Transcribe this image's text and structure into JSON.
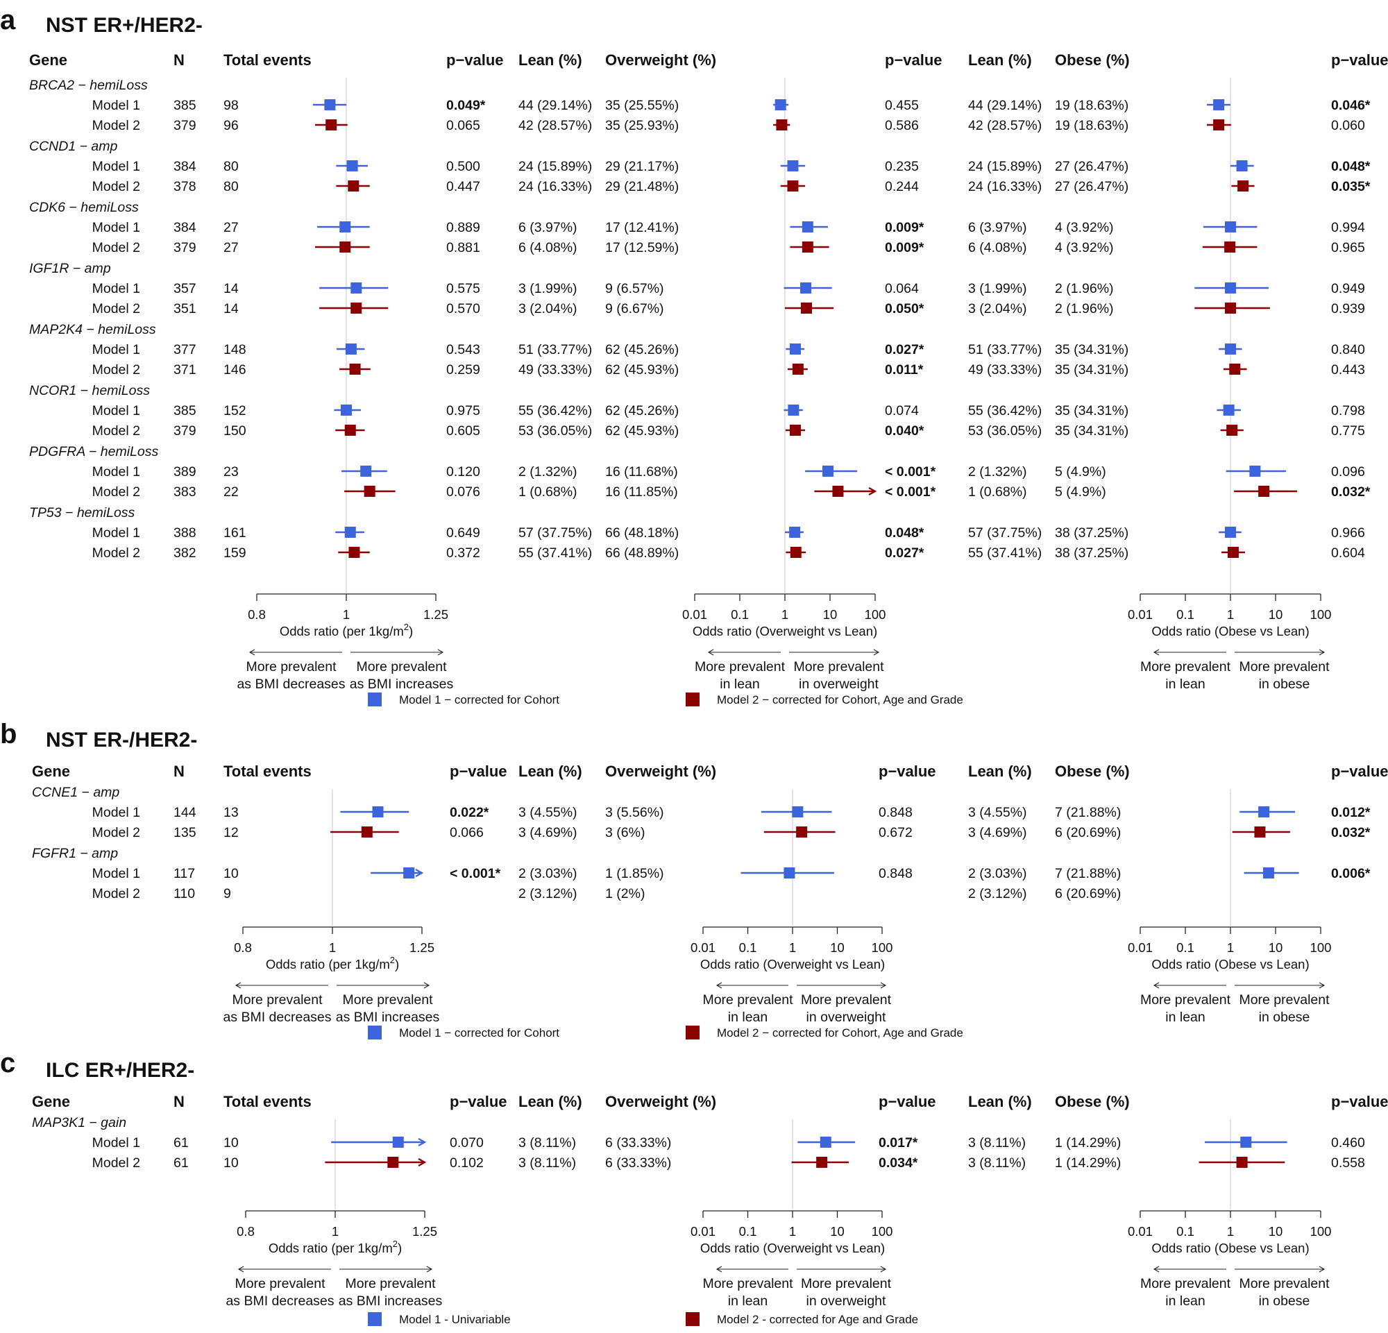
{
  "colors": {
    "model1": "#3c64dc",
    "model2": "#8b0000",
    "ref": "#d0d0d0",
    "axis": "#222222"
  },
  "columns": [
    "Gene",
    "N",
    "Total events",
    "p−value",
    "Lean (%)",
    "Overweight (%)",
    "p−value",
    "Lean (%)",
    "Obese (%)",
    "p−value"
  ],
  "axes": {
    "bmi_ticks": [
      "0.8",
      "1",
      "1.25"
    ],
    "bmi_label": "Odds ratio (per 1kg/m",
    "bmi_label_sup": "2",
    "bmi_label_end": ")",
    "ow_ticks": [
      "0.01",
      "0.1",
      "1",
      "10",
      "100"
    ],
    "ow_label": "Odds ratio (Overweight vs Lean)",
    "ob_ticks": [
      "0.01",
      "0.1",
      "1",
      "10",
      "100"
    ],
    "ob_label": "Odds ratio (Obese vs Lean)",
    "dir_bmi_left": [
      "More prevalent",
      "as BMI decreases"
    ],
    "dir_bmi_right": [
      "More prevalent",
      "as BMI increases"
    ],
    "dir_ow_left": [
      "More prevalent",
      "in lean"
    ],
    "dir_ow_right": [
      "More prevalent",
      "in overweight"
    ],
    "dir_ob_left": [
      "More prevalent",
      "in lean"
    ],
    "dir_ob_right": [
      "More prevalent",
      "in obese"
    ]
  },
  "chart_data": [
    {
      "type": "forest",
      "label": "a",
      "title": "NST ER+/HER2-",
      "legend": [
        "Model 1 − corrected for Cohort",
        "Model 2 − corrected for Cohort, Age and Grade"
      ],
      "groups": [
        {
          "gene": "BRCA2 − hemiLoss",
          "rows": [
            {
              "model": "Model 1",
              "n": "385",
              "events": "98",
              "p1": "0.049*",
              "lean1": "44 (29.14%)",
              "ow": "35 (25.55%)",
              "p2": "0.455",
              "lean2": "44 (29.14%)",
              "ob": "19 (18.63%)",
              "p3": "0.046*",
              "f1": [
                0.96,
                0.92,
                1.0
              ],
              "f2": [
                0.8,
                0.55,
                1.2
              ],
              "f3": [
                0.55,
                0.3,
                1.0
              ]
            },
            {
              "model": "Model 2",
              "n": "379",
              "events": "96",
              "p1": "0.065",
              "lean1": "42 (28.57%)",
              "ow": "35 (25.93%)",
              "p2": "0.586",
              "lean2": "42 (28.57%)",
              "ob": "19 (18.63%)",
              "p3": "0.060",
              "f1": [
                0.963,
                0.925,
                1.003
              ],
              "f2": [
                0.85,
                0.55,
                1.3
              ],
              "f3": [
                0.55,
                0.3,
                1.03
              ]
            }
          ]
        },
        {
          "gene": "CCND1 − amp",
          "rows": [
            {
              "model": "Model 1",
              "n": "384",
              "events": "80",
              "p1": "0.500",
              "lean1": "24 (15.89%)",
              "ow": "29 (21.17%)",
              "p2": "0.235",
              "lean2": "24 (15.89%)",
              "ob": "27 (26.47%)",
              "p3": "0.048*",
              "f1": [
                1.015,
                0.975,
                1.055
              ],
              "f2": [
                1.5,
                0.8,
                2.8
              ],
              "f3": [
                1.8,
                1.0,
                3.3
              ]
            },
            {
              "model": "Model 2",
              "n": "378",
              "events": "80",
              "p1": "0.447",
              "lean1": "24 (16.33%)",
              "ow": "29 (21.48%)",
              "p2": "0.244",
              "lean2": "24 (16.33%)",
              "ob": "27 (26.47%)",
              "p3": "0.035*",
              "f1": [
                1.018,
                0.975,
                1.06
              ],
              "f2": [
                1.5,
                0.8,
                2.8
              ],
              "f3": [
                1.9,
                1.05,
                3.4
              ]
            }
          ]
        },
        {
          "gene": "CDK6 − hemiLoss",
          "rows": [
            {
              "model": "Model 1",
              "n": "384",
              "events": "27",
              "p1": "0.889",
              "lean1": "6 (3.97%)",
              "ow": "17 (12.41%)",
              "p2": "0.009*",
              "lean2": "6 (3.97%)",
              "ob": "4 (3.92%)",
              "p3": "0.994",
              "f1": [
                0.997,
                0.93,
                1.06
              ],
              "f2": [
                3.2,
                1.3,
                9.0
              ],
              "f3": [
                1.0,
                0.25,
                3.9
              ]
            },
            {
              "model": "Model 2",
              "n": "379",
              "events": "27",
              "p1": "0.881",
              "lean1": "6 (4.08%)",
              "ow": "17 (12.59%)",
              "p2": "0.009*",
              "lean2": "6 (4.08%)",
              "ob": "4 (3.92%)",
              "p3": "0.965",
              "f1": [
                0.997,
                0.925,
                1.06
              ],
              "f2": [
                3.2,
                1.3,
                9.5
              ],
              "f3": [
                0.97,
                0.24,
                3.9
              ]
            }
          ]
        },
        {
          "gene": "IGF1R − amp",
          "rows": [
            {
              "model": "Model 1",
              "n": "357",
              "events": "14",
              "p1": "0.575",
              "lean1": "3 (1.99%)",
              "ow": "9 (6.57%)",
              "p2": "0.064",
              "lean2": "3 (1.99%)",
              "ob": "2 (1.96%)",
              "p3": "0.949",
              "f1": [
                1.025,
                0.935,
                1.11
              ],
              "f2": [
                2.9,
                0.95,
                11.0
              ],
              "f3": [
                1.0,
                0.16,
                7.0
              ]
            },
            {
              "model": "Model 2",
              "n": "351",
              "events": "14",
              "p1": "0.570",
              "lean1": "3 (2.04%)",
              "ow": "9 (6.67%)",
              "p2": "0.050*",
              "lean2": "3 (2.04%)",
              "ob": "2 (1.96%)",
              "p3": "0.939",
              "f1": [
                1.025,
                0.935,
                1.11
              ],
              "f2": [
                3.0,
                1.0,
                12.0
              ],
              "f3": [
                1.0,
                0.16,
                7.5
              ]
            }
          ]
        },
        {
          "gene": "MAP2K4 − hemiLoss",
          "rows": [
            {
              "model": "Model 1",
              "n": "377",
              "events": "148",
              "p1": "0.543",
              "lean1": "51 (33.77%)",
              "ow": "62 (45.26%)",
              "p2": "0.027*",
              "lean2": "51 (33.77%)",
              "ob": "35 (34.31%)",
              "p3": "0.840",
              "f1": [
                1.012,
                0.976,
                1.047
              ],
              "f2": [
                1.7,
                1.05,
                2.7
              ],
              "f3": [
                1.0,
                0.55,
                1.8
              ]
            },
            {
              "model": "Model 2",
              "n": "371",
              "events": "146",
              "p1": "0.259",
              "lean1": "49 (33.33%)",
              "ow": "62 (45.93%)",
              "p2": "0.011*",
              "lean2": "49 (33.33%)",
              "ob": "35 (34.31%)",
              "p3": "0.443",
              "f1": [
                1.022,
                0.983,
                1.062
              ],
              "f2": [
                1.95,
                1.15,
                3.2
              ],
              "f3": [
                1.25,
                0.7,
                2.3
              ]
            }
          ]
        },
        {
          "gene": "NCOR1 − hemiLoss",
          "rows": [
            {
              "model": "Model 1",
              "n": "385",
              "events": "152",
              "p1": "0.975",
              "lean1": "55 (36.42%)",
              "ow": "62 (45.26%)",
              "p2": "0.074",
              "lean2": "55 (36.42%)",
              "ob": "35 (34.31%)",
              "p3": "0.798",
              "f1": [
                1.0,
                0.97,
                1.037
              ],
              "f2": [
                1.55,
                0.95,
                2.5
              ],
              "f3": [
                0.92,
                0.5,
                1.7
              ]
            },
            {
              "model": "Model 2",
              "n": "379",
              "events": "150",
              "p1": "0.605",
              "lean1": "53 (36.05%)",
              "ow": "62 (45.93%)",
              "p2": "0.040*",
              "lean2": "53 (36.05%)",
              "ob": "35 (34.31%)",
              "p3": "0.775",
              "f1": [
                1.01,
                0.973,
                1.047
              ],
              "f2": [
                1.7,
                1.03,
                2.8
              ],
              "f3": [
                1.08,
                0.6,
                1.95
              ]
            }
          ]
        },
        {
          "gene": "PDGFRA − hemiLoss",
          "rows": [
            {
              "model": "Model 1",
              "n": "389",
              "events": "23",
              "p1": "0.120",
              "lean1": "2 (1.32%)",
              "ow": "16 (11.68%)",
              "p2": "< 0.001*",
              "lean2": "2 (1.32%)",
              "ob": "5 (4.9%)",
              "p3": "0.096",
              "f1": [
                1.05,
                0.988,
                1.107
              ],
              "f2": [
                9.0,
                2.8,
                40.0
              ],
              "f3": [
                3.5,
                0.8,
                17.0
              ]
            },
            {
              "model": "Model 2",
              "n": "383",
              "events": "22",
              "p1": "0.076",
              "lean1": "1 (0.68%)",
              "ow": "16 (11.85%)",
              "p2": "< 0.001*",
              "lean2": "1 (0.68%)",
              "ob": "5 (4.9%)",
              "p3": "0.032*",
              "f1": [
                1.06,
                0.995,
                1.13
              ],
              "f2": [
                15.0,
                4.5,
                100.0
              ],
              "f3": [
                5.5,
                1.2,
                30.0
              ],
              "arrow2": true
            }
          ]
        },
        {
          "gene": "TP53 − hemiLoss",
          "rows": [
            {
              "model": "Model 1",
              "n": "388",
              "events": "161",
              "p1": "0.649",
              "lean1": "57 (37.75%)",
              "ow": "66 (48.18%)",
              "p2": "0.048*",
              "lean2": "57 (37.75%)",
              "ob": "38 (37.25%)",
              "p3": "0.966",
              "f1": [
                1.01,
                0.973,
                1.046
              ],
              "f2": [
                1.65,
                1.0,
                2.6
              ],
              "f3": [
                1.0,
                0.55,
                1.75
              ]
            },
            {
              "model": "Model 2",
              "n": "382",
              "events": "159",
              "p1": "0.372",
              "lean1": "55 (37.41%)",
              "ow": "66 (48.89%)",
              "p2": "0.027*",
              "lean2": "55 (37.41%)",
              "ob": "38 (37.25%)",
              "p3": "0.604",
              "f1": [
                1.02,
                0.98,
                1.06
              ],
              "f2": [
                1.75,
                1.05,
                2.9
              ],
              "f3": [
                1.15,
                0.63,
                2.1
              ]
            }
          ]
        }
      ]
    },
    {
      "type": "forest",
      "label": "b",
      "title": "NST ER-/HER2-",
      "legend": [
        "Model 1 − corrected for Cohort",
        "Model 2 − corrected for Cohort, Age and Grade"
      ],
      "groups": [
        {
          "gene": "CCNE1 − amp",
          "rows": [
            {
              "model": "Model 1",
              "n": "144",
              "events": "13",
              "p1": "0.022*",
              "lean1": "3 (4.55%)",
              "ow": "3 (5.56%)",
              "p2": "0.848",
              "lean2": "3 (4.55%)",
              "ob": "7 (21.88%)",
              "p3": "0.012*",
              "f1": [
                1.12,
                1.02,
                1.21
              ],
              "f2": [
                1.3,
                0.2,
                7.5
              ],
              "f3": [
                5.5,
                1.6,
                27.0
              ]
            },
            {
              "model": "Model 2",
              "n": "135",
              "events": "12",
              "p1": "0.066",
              "lean1": "3 (4.69%)",
              "ow": "3 (6%)",
              "p2": "0.672",
              "lean2": "3 (4.69%)",
              "ob": "6 (20.69%)",
              "p3": "0.032*",
              "f1": [
                1.09,
                0.995,
                1.18
              ],
              "f2": [
                1.6,
                0.23,
                9.0
              ],
              "f3": [
                4.5,
                1.1,
                21.0
              ]
            }
          ]
        },
        {
          "gene": "FGFR1 − amp",
          "rows": [
            {
              "model": "Model 1",
              "n": "117",
              "events": "10",
              "p1": "< 0.001*",
              "lean1": "2 (3.03%)",
              "ow": "1 (1.85%)",
              "p2": "0.848",
              "lean2": "2 (3.03%)",
              "ob": "7 (21.88%)",
              "p3": "0.006*",
              "f1": [
                1.21,
                1.1,
                1.25
              ],
              "f2": [
                0.85,
                0.07,
                8.5
              ],
              "f3": [
                7.0,
                2.0,
                33.0
              ],
              "arrow1": true
            },
            {
              "model": "Model 2",
              "n": "110",
              "events": "9",
              "p1": "",
              "lean1": "2 (3.12%)",
              "ow": "1 (2%)",
              "p2": "",
              "lean2": "2 (3.12%)",
              "ob": "6 (20.69%)",
              "p3": "",
              "f1": null,
              "f2": null,
              "f3": null
            }
          ]
        }
      ]
    },
    {
      "type": "forest",
      "label": "c",
      "title": "ILC ER+/HER2-",
      "legend": [
        "Model 1 - Univariable",
        "Model 2 - corrected for Age and Grade"
      ],
      "groups": [
        {
          "gene": "MAP3K1 − gain",
          "rows": [
            {
              "model": "Model 1",
              "n": "61",
              "events": "10",
              "p1": "0.070",
              "lean1": "3 (8.11%)",
              "ow": "6 (33.33%)",
              "p2": "0.017*",
              "lean2": "3 (8.11%)",
              "ob": "1 (14.29%)",
              "p3": "0.460",
              "f1": [
                1.17,
                0.99,
                1.25
              ],
              "f2": [
                5.5,
                1.3,
                25.0
              ],
              "f3": [
                2.2,
                0.27,
                18.0
              ],
              "arrow1": true
            },
            {
              "model": "Model 2",
              "n": "61",
              "events": "10",
              "p1": "0.102",
              "lean1": "3 (8.11%)",
              "ow": "6 (33.33%)",
              "p2": "0.034*",
              "lean2": "3 (8.11%)",
              "ob": "1 (14.29%)",
              "p3": "0.558",
              "f1": [
                1.155,
                0.975,
                1.25
              ],
              "f2": [
                4.5,
                0.95,
                18.0
              ],
              "f3": [
                1.8,
                0.2,
                16.0
              ],
              "arrow1": true
            }
          ]
        }
      ]
    }
  ]
}
